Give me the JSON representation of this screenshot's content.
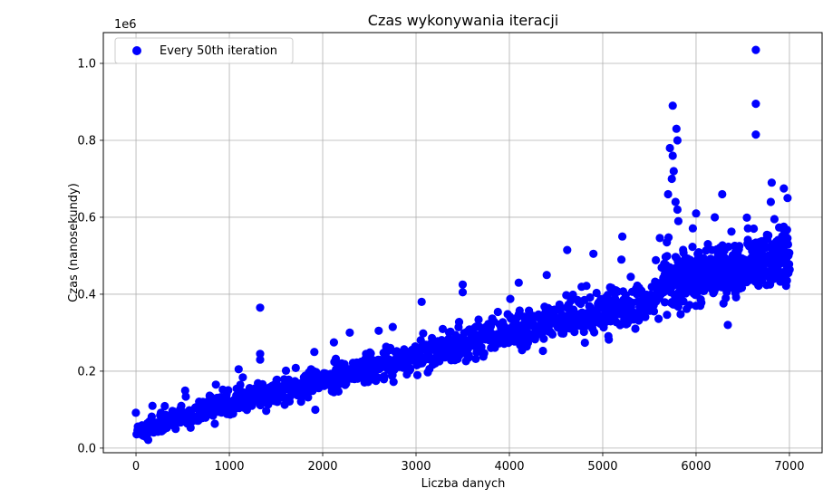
{
  "chart_data": {
    "type": "scatter",
    "title": "Czas wykonywania iteracji",
    "xlabel": "Liczba danych",
    "ylabel": "Czas (nanosekundy)",
    "y_offset_label": "1e6",
    "xlim": [
      -350,
      7350
    ],
    "ylim": [
      -0.012,
      1.08
    ],
    "x_ticks": [
      0,
      1000,
      2000,
      3000,
      4000,
      5000,
      6000,
      7000
    ],
    "y_ticks": [
      0.0,
      0.2,
      0.4,
      0.6,
      0.8,
      1.0
    ],
    "x_tick_labels": [
      "0",
      "1000",
      "2000",
      "3000",
      "4000",
      "5000",
      "6000",
      "7000"
    ],
    "y_tick_labels": [
      "0.0",
      "0.2",
      "0.4",
      "0.6",
      "0.8",
      "1.0"
    ],
    "grid": true,
    "legend_position": "top-left",
    "series": [
      {
        "name": "Every 50th iteration",
        "color": "#0000ff",
        "x_range": [
          0,
          7000
        ],
        "trend": [
          [
            0,
            0.045
          ],
          [
            1000,
            0.115
          ],
          [
            2000,
            0.175
          ],
          [
            3000,
            0.235
          ],
          [
            4000,
            0.3
          ],
          [
            5000,
            0.355
          ],
          [
            5600,
            0.39
          ],
          [
            5650,
            0.45
          ],
          [
            6000,
            0.44
          ],
          [
            7000,
            0.5
          ]
        ],
        "highlights": [
          {
            "x": 6640,
            "y": 1.035
          },
          {
            "x": 6640,
            "y": 0.895
          },
          {
            "x": 6640,
            "y": 0.815
          },
          {
            "x": 5750,
            "y": 0.89
          },
          {
            "x": 5790,
            "y": 0.83
          },
          {
            "x": 5800,
            "y": 0.8
          },
          {
            "x": 5720,
            "y": 0.78
          },
          {
            "x": 5750,
            "y": 0.76
          },
          {
            "x": 5760,
            "y": 0.72
          },
          {
            "x": 5740,
            "y": 0.7
          },
          {
            "x": 5700,
            "y": 0.66
          },
          {
            "x": 5780,
            "y": 0.64
          },
          {
            "x": 5800,
            "y": 0.62
          },
          {
            "x": 5810,
            "y": 0.59
          },
          {
            "x": 6000,
            "y": 0.61
          },
          {
            "x": 6280,
            "y": 0.66
          },
          {
            "x": 6810,
            "y": 0.69
          },
          {
            "x": 6940,
            "y": 0.675
          },
          {
            "x": 6980,
            "y": 0.65
          },
          {
            "x": 6800,
            "y": 0.64
          },
          {
            "x": 6200,
            "y": 0.6
          },
          {
            "x": 1330,
            "y": 0.365
          },
          {
            "x": 1330,
            "y": 0.245
          },
          {
            "x": 1330,
            "y": 0.23
          },
          {
            "x": 1100,
            "y": 0.205
          },
          {
            "x": 1910,
            "y": 0.25
          },
          {
            "x": 2120,
            "y": 0.275
          },
          {
            "x": 2290,
            "y": 0.3
          },
          {
            "x": 2600,
            "y": 0.305
          },
          {
            "x": 2750,
            "y": 0.315
          },
          {
            "x": 3060,
            "y": 0.38
          },
          {
            "x": 3500,
            "y": 0.425
          },
          {
            "x": 3500,
            "y": 0.405
          },
          {
            "x": 4100,
            "y": 0.43
          },
          {
            "x": 4400,
            "y": 0.45
          },
          {
            "x": 4620,
            "y": 0.515
          },
          {
            "x": 4900,
            "y": 0.505
          },
          {
            "x": 5210,
            "y": 0.55
          },
          {
            "x": 5200,
            "y": 0.49
          },
          {
            "x": 6340,
            "y": 0.32
          }
        ]
      }
    ]
  }
}
